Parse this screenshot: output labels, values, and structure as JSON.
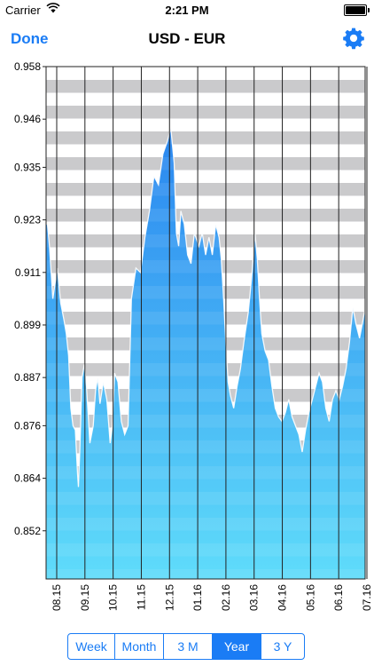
{
  "status_bar": {
    "carrier": "Carrier",
    "time": "2:21 PM"
  },
  "nav": {
    "done_label": "Done",
    "title": "USD - EUR"
  },
  "segments": [
    {
      "label": "Week",
      "active": false
    },
    {
      "label": "Month",
      "active": false
    },
    {
      "label": "3 M",
      "active": false
    },
    {
      "label": "Year",
      "active": true
    },
    {
      "label": "3 Y",
      "active": false
    }
  ],
  "colors": {
    "accent": "#1a7cf5",
    "area_top": "#2a86ef",
    "area_bottom": "#5fdcfa",
    "stripe": "#c6c6c8"
  },
  "chart_data": {
    "type": "area",
    "ylim": [
      0.841,
      0.958
    ],
    "y_ticks": [
      "0.958",
      "0.946",
      "0.935",
      "0.923",
      "0.911",
      "0.899",
      "0.887",
      "0.876",
      "0.864",
      "0.852"
    ],
    "x_ticks": [
      "08.15",
      "09.15",
      "10.15",
      "11.15",
      "12.15",
      "01.16",
      "02.16",
      "03.16",
      "04.16",
      "05.16",
      "06.16",
      "07.16"
    ],
    "series": [
      {
        "values": [
          [
            0,
            0.922
          ],
          [
            0.6,
            0.922
          ],
          [
            1.5,
            0.917
          ],
          [
            3,
            0.905
          ],
          [
            5,
            0.912
          ],
          [
            6.5,
            0.904
          ],
          [
            8,
            0.9
          ],
          [
            9,
            0.897
          ],
          [
            10,
            0.892
          ],
          [
            11,
            0.88
          ],
          [
            12,
            0.876
          ],
          [
            13,
            0.875
          ],
          [
            14,
            0.865
          ],
          [
            14.4,
            0.862
          ],
          [
            15,
            0.87
          ],
          [
            16,
            0.887
          ],
          [
            17,
            0.89
          ],
          [
            18,
            0.885
          ],
          [
            19.5,
            0.872
          ],
          [
            21,
            0.876
          ],
          [
            22,
            0.884
          ],
          [
            23,
            0.887
          ],
          [
            24,
            0.881
          ],
          [
            25.5,
            0.886
          ],
          [
            27,
            0.882
          ],
          [
            28.5,
            0.872
          ],
          [
            29.5,
            0.876
          ],
          [
            30.5,
            0.888
          ],
          [
            32,
            0.886
          ],
          [
            33.5,
            0.877
          ],
          [
            35,
            0.874
          ],
          [
            36.5,
            0.876
          ],
          [
            38,
            0.905
          ],
          [
            40,
            0.912
          ],
          [
            42,
            0.911
          ],
          [
            44,
            0.919
          ],
          [
            46,
            0.925
          ],
          [
            48,
            0.933
          ],
          [
            50,
            0.931
          ],
          [
            52,
            0.938
          ],
          [
            54,
            0.941
          ],
          [
            55.5,
            0.944
          ],
          [
            57,
            0.936
          ],
          [
            58,
            0.92
          ],
          [
            59,
            0.917
          ],
          [
            60,
            0.925
          ],
          [
            61.5,
            0.922
          ],
          [
            63,
            0.915
          ],
          [
            64.5,
            0.913
          ],
          [
            66,
            0.92
          ],
          [
            68,
            0.917
          ],
          [
            69.5,
            0.92
          ],
          [
            71,
            0.915
          ],
          [
            72.5,
            0.919
          ],
          [
            74,
            0.915
          ],
          [
            75.5,
            0.922
          ],
          [
            77,
            0.919
          ],
          [
            78,
            0.914
          ],
          [
            79,
            0.905
          ],
          [
            80,
            0.895
          ],
          [
            81,
            0.886
          ],
          [
            82,
            0.883
          ],
          [
            83.5,
            0.88
          ],
          [
            85,
            0.885
          ],
          [
            86.5,
            0.889
          ],
          [
            88,
            0.895
          ],
          [
            90,
            0.902
          ],
          [
            91.5,
            0.91
          ],
          [
            93,
            0.92
          ],
          [
            94,
            0.914
          ],
          [
            95,
            0.905
          ],
          [
            96,
            0.897
          ],
          [
            97.5,
            0.893
          ],
          [
            99,
            0.891
          ],
          [
            100.5,
            0.885
          ],
          [
            102,
            0.88
          ],
          [
            103.5,
            0.878
          ],
          [
            105,
            0.877
          ],
          [
            106.5,
            0.879
          ],
          [
            108,
            0.882
          ],
          [
            109.5,
            0.878
          ],
          [
            111,
            0.876
          ],
          [
            112.5,
            0.874
          ],
          [
            114,
            0.87
          ],
          [
            115.5,
            0.875
          ],
          [
            117,
            0.879
          ],
          [
            118.5,
            0.882
          ],
          [
            120,
            0.885
          ],
          [
            121.5,
            0.888
          ],
          [
            123,
            0.886
          ],
          [
            124.5,
            0.88
          ],
          [
            126,
            0.877
          ],
          [
            127.5,
            0.882
          ],
          [
            129,
            0.884
          ],
          [
            130.5,
            0.882
          ],
          [
            132,
            0.885
          ],
          [
            133.5,
            0.889
          ],
          [
            135,
            0.895
          ],
          [
            136.5,
            0.903
          ],
          [
            138,
            0.899
          ],
          [
            139.5,
            0.896
          ],
          [
            141,
            0.9
          ],
          [
            142,
            0.903
          ]
        ]
      }
    ]
  }
}
